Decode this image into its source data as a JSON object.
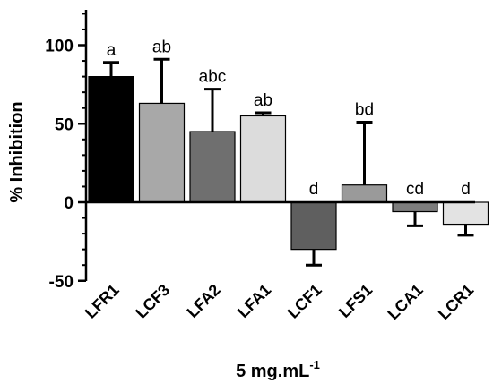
{
  "chart_data": {
    "type": "bar",
    "ylabel": "% Inhibition",
    "xlabel": {
      "main": "5 mg.mL",
      "superscript": "-1"
    },
    "ylim": [
      -50,
      120
    ],
    "yticks": [
      "-50",
      "0",
      "50",
      "100"
    ],
    "categories": [
      "LFR1",
      "LCF3",
      "LFA2",
      "LFA1",
      "LCF1",
      "LFS1",
      "LCA1",
      "LCR1"
    ],
    "values": [
      80,
      63,
      45,
      55,
      -30,
      11,
      -6,
      -14
    ],
    "error": [
      9,
      28,
      27,
      2,
      10,
      40,
      9,
      7
    ],
    "significance": [
      "a",
      "ab",
      "abc",
      "ab",
      "d",
      "bd",
      "cd",
      "d"
    ],
    "colors": [
      "#000000",
      "#a8a8a8",
      "#6f6f6f",
      "#dcdcdc",
      "#5f5f5f",
      "#9a9a9a",
      "#7d7d7d",
      "#e3e3e3"
    ],
    "grid": false,
    "legend": "none"
  }
}
